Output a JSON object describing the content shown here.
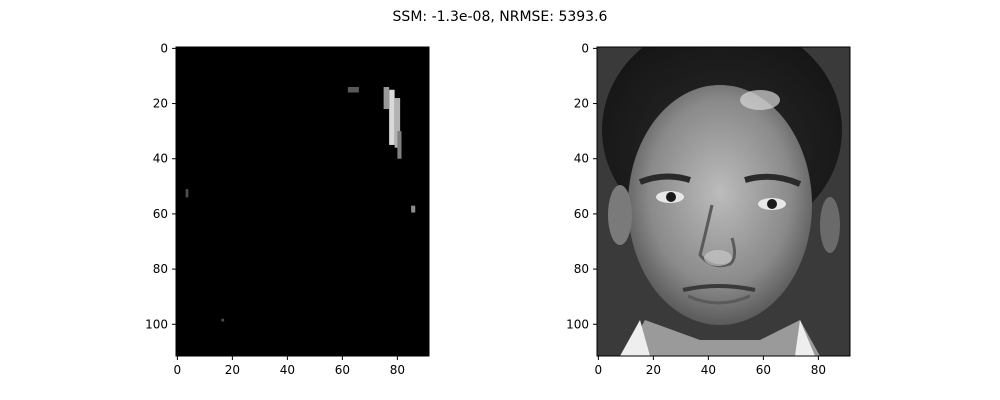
{
  "figure_title": "SSM: -1.3e-08, NRMSE: 5393.6",
  "chart_data": [
    {
      "type": "heatmap",
      "description_role": "left-panel",
      "colormap": "gray",
      "x_ticks": [
        "0",
        "20",
        "40",
        "60",
        "80"
      ],
      "y_ticks": [
        "0",
        "20",
        "40",
        "60",
        "80",
        "100"
      ],
      "xlim": [
        -0.5,
        91.5
      ],
      "ylim": [
        111.5,
        -0.5
      ],
      "highlights": [
        {
          "x": 77,
          "y": 15,
          "w": 2,
          "h": 20,
          "value": 0.85
        },
        {
          "x": 79,
          "y": 18,
          "w": 2,
          "h": 18,
          "value": 0.7
        },
        {
          "x": 75,
          "y": 14,
          "w": 2,
          "h": 8,
          "value": 0.6
        },
        {
          "x": 80,
          "y": 30,
          "w": 1.5,
          "h": 10,
          "value": 0.5
        },
        {
          "x": 62,
          "y": 14,
          "w": 4,
          "h": 2,
          "value": 0.35
        },
        {
          "x": 3,
          "y": 51,
          "w": 1,
          "h": 3,
          "value": 0.3
        },
        {
          "x": 85,
          "y": 57,
          "w": 1.5,
          "h": 2.5,
          "value": 0.55
        },
        {
          "x": 16,
          "y": 98,
          "w": 1,
          "h": 1,
          "value": 0.3
        }
      ]
    },
    {
      "type": "heatmap",
      "description_role": "right-panel",
      "colormap": "gray",
      "x_ticks": [
        "0",
        "20",
        "40",
        "60",
        "80"
      ],
      "y_ticks": [
        "0",
        "20",
        "40",
        "60",
        "80",
        "100"
      ],
      "xlim": [
        -0.5,
        91.5
      ],
      "ylim": [
        111.5,
        -0.5
      ]
    }
  ]
}
